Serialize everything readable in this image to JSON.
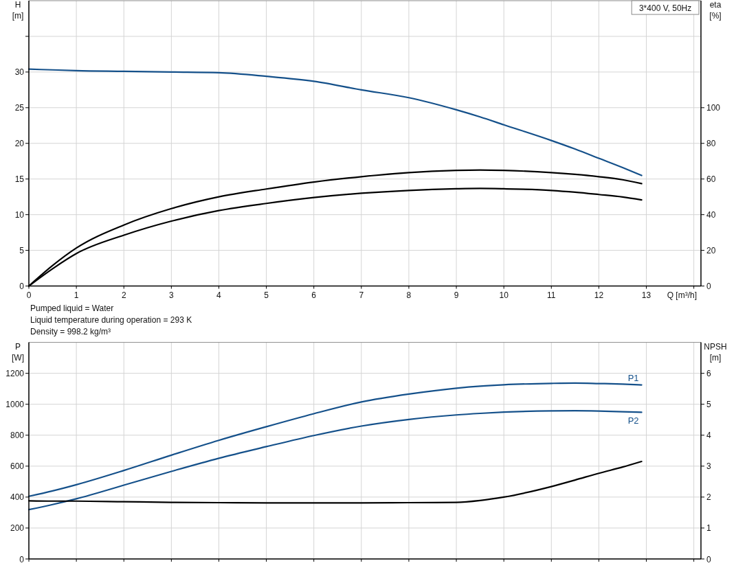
{
  "chart_data": [
    {
      "type": "line",
      "title": "3*400 V, 50Hz",
      "xlabel": "Q [m³/h]",
      "ylabel": "H [m]",
      "y2label": "eta [%]",
      "annotations": [
        "Pumped liquid = Water",
        "Liquid temperature during operation = 293 K",
        "Density = 998.2 kg/m³"
      ],
      "x": [
        0,
        0.5,
        1,
        2,
        3,
        4,
        5,
        6,
        7,
        8,
        9,
        9.5,
        10,
        11,
        11.5,
        12,
        12.5,
        12.9
      ],
      "series": [
        {
          "color": "#14508a",
          "values": [
            30.4,
            30.3,
            30.2,
            30.1,
            30.0,
            29.9,
            29.4,
            28.7,
            27.5,
            26.4,
            24.7,
            23.7,
            22.6,
            20.4,
            19.2,
            17.9,
            16.6,
            15.5
          ]
        },
        {
          "color": "#000000",
          "axis": "y2",
          "values": [
            0,
            11.5,
            21.3,
            34.2,
            43.4,
            50.0,
            54.4,
            58.3,
            61.3,
            63.6,
            64.8,
            65.0,
            64.8,
            63.6,
            62.6,
            61.3,
            59.6,
            57.4
          ]
        },
        {
          "color": "#000000",
          "axis": "y2",
          "values": [
            0,
            9.7,
            18.2,
            28.5,
            36.4,
            42.3,
            46.3,
            49.6,
            52.0,
            53.6,
            54.5,
            54.7,
            54.5,
            53.6,
            52.6,
            51.3,
            49.9,
            48.3
          ]
        }
      ],
      "xlim": [
        0,
        14.15
      ],
      "xticks": [
        0,
        1,
        2,
        3,
        4,
        5,
        6,
        7,
        8,
        9,
        10,
        11,
        12,
        13,
        {
          "value": 14,
          "label": null
        }
      ],
      "ylim": [
        0,
        40
      ],
      "yticks": [
        0,
        5,
        10,
        15,
        20,
        25,
        30,
        {
          "value": 35,
          "label": null
        }
      ],
      "y2lim": [
        0,
        160
      ],
      "y2ticks": [
        0,
        20,
        40,
        60,
        80,
        100
      ],
      "grid": true,
      "line_style": "solid"
    },
    {
      "type": "line",
      "ylabel": "P [W]",
      "y2label": "NPSH [m]",
      "x": [
        0,
        0.5,
        1,
        2,
        3,
        4,
        5,
        6,
        7,
        8,
        9,
        9.5,
        10,
        11,
        11.5,
        12,
        12.5,
        12.9
      ],
      "series": [
        {
          "name": "P1",
          "color": "#14508a",
          "values": [
            405,
            440,
            480,
            572,
            671,
            767,
            855,
            939,
            1015,
            1066,
            1104,
            1117,
            1126,
            1135,
            1137,
            1134,
            1130,
            1125
          ]
        },
        {
          "name": "P2",
          "color": "#14508a",
          "values": [
            319,
            352,
            389,
            477,
            566,
            651,
            726,
            798,
            859,
            902,
            931,
            941,
            949,
            957,
            958,
            956,
            952,
            948
          ]
        },
        {
          "color": "#000000",
          "axis": "y2",
          "values": [
            1.88,
            1.87,
            1.87,
            1.85,
            1.83,
            1.82,
            1.81,
            1.81,
            1.81,
            1.82,
            1.83,
            1.89,
            2.0,
            2.34,
            2.55,
            2.77,
            2.97,
            3.15
          ]
        }
      ],
      "xlim": [
        0,
        14.15
      ],
      "xticks": [
        0,
        1,
        2,
        3,
        4,
        5,
        6,
        7,
        8,
        9,
        10,
        11,
        12,
        13,
        14
      ],
      "ylim": [
        0,
        1400
      ],
      "yticks": [
        0,
        200,
        400,
        600,
        800,
        1000,
        1200
      ],
      "y2lim": [
        0,
        7
      ],
      "y2ticks": [
        0,
        1,
        2,
        3,
        4,
        5,
        6
      ],
      "tick_labels": "y",
      "grid": true,
      "line_style": "solid"
    }
  ]
}
